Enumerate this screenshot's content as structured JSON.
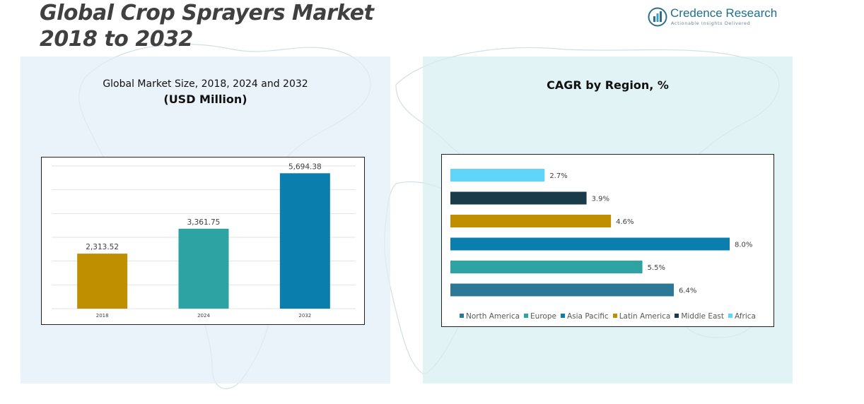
{
  "header": {
    "title_line1": "Global Crop Sprayers Market",
    "title_line2": "2018 to 2032"
  },
  "logo": {
    "name": "Credence Research",
    "tagline": "Actionable Insights Delivered",
    "icon": "bar-chart-circle-icon"
  },
  "left_panel": {
    "subtitle": "Global Market Size, 2018, 2024 and 2032",
    "unit": "(USD Million)"
  },
  "right_panel": {
    "title": "CAGR by Region, %"
  },
  "colors": {
    "gold": "#bf8f00",
    "teal": "#2ea3a3",
    "blue": "#0a7fae",
    "steel": "#2e7897",
    "navy": "#1a3b4a",
    "sky": "#5fd5f9"
  },
  "chart_data": [
    {
      "type": "bar",
      "title": "Global Market Size, 2018, 2024 and 2032",
      "ylabel": "(USD Million)",
      "categories": [
        "2018",
        "2024",
        "2032"
      ],
      "values": [
        2313.52,
        3361.75,
        5694.38
      ],
      "value_labels": [
        "2,313.52",
        "3,361.75",
        "5,694.38"
      ],
      "colors": [
        "#bf8f00",
        "#2ea3a3",
        "#0a7fae"
      ],
      "ylim": [
        0,
        6000
      ],
      "grid": true
    },
    {
      "type": "bar",
      "orientation": "horizontal",
      "title": "CAGR by Region, %",
      "categories": [
        "North America",
        "Europe",
        "Asia Pacific",
        "Latin America",
        "Middle East",
        "Africa"
      ],
      "values": [
        6.4,
        5.5,
        8.0,
        4.6,
        3.9,
        2.7
      ],
      "value_labels": [
        "6.4%",
        "5.5%",
        "8.0%",
        "4.6%",
        "3.9%",
        "2.7%"
      ],
      "colors": [
        "#2e7897",
        "#2ea3a3",
        "#0a7fae",
        "#bf8f00",
        "#1a3b4a",
        "#5fd5f9"
      ],
      "legend_position": "bottom",
      "xlim": [
        0,
        8.0
      ]
    }
  ]
}
